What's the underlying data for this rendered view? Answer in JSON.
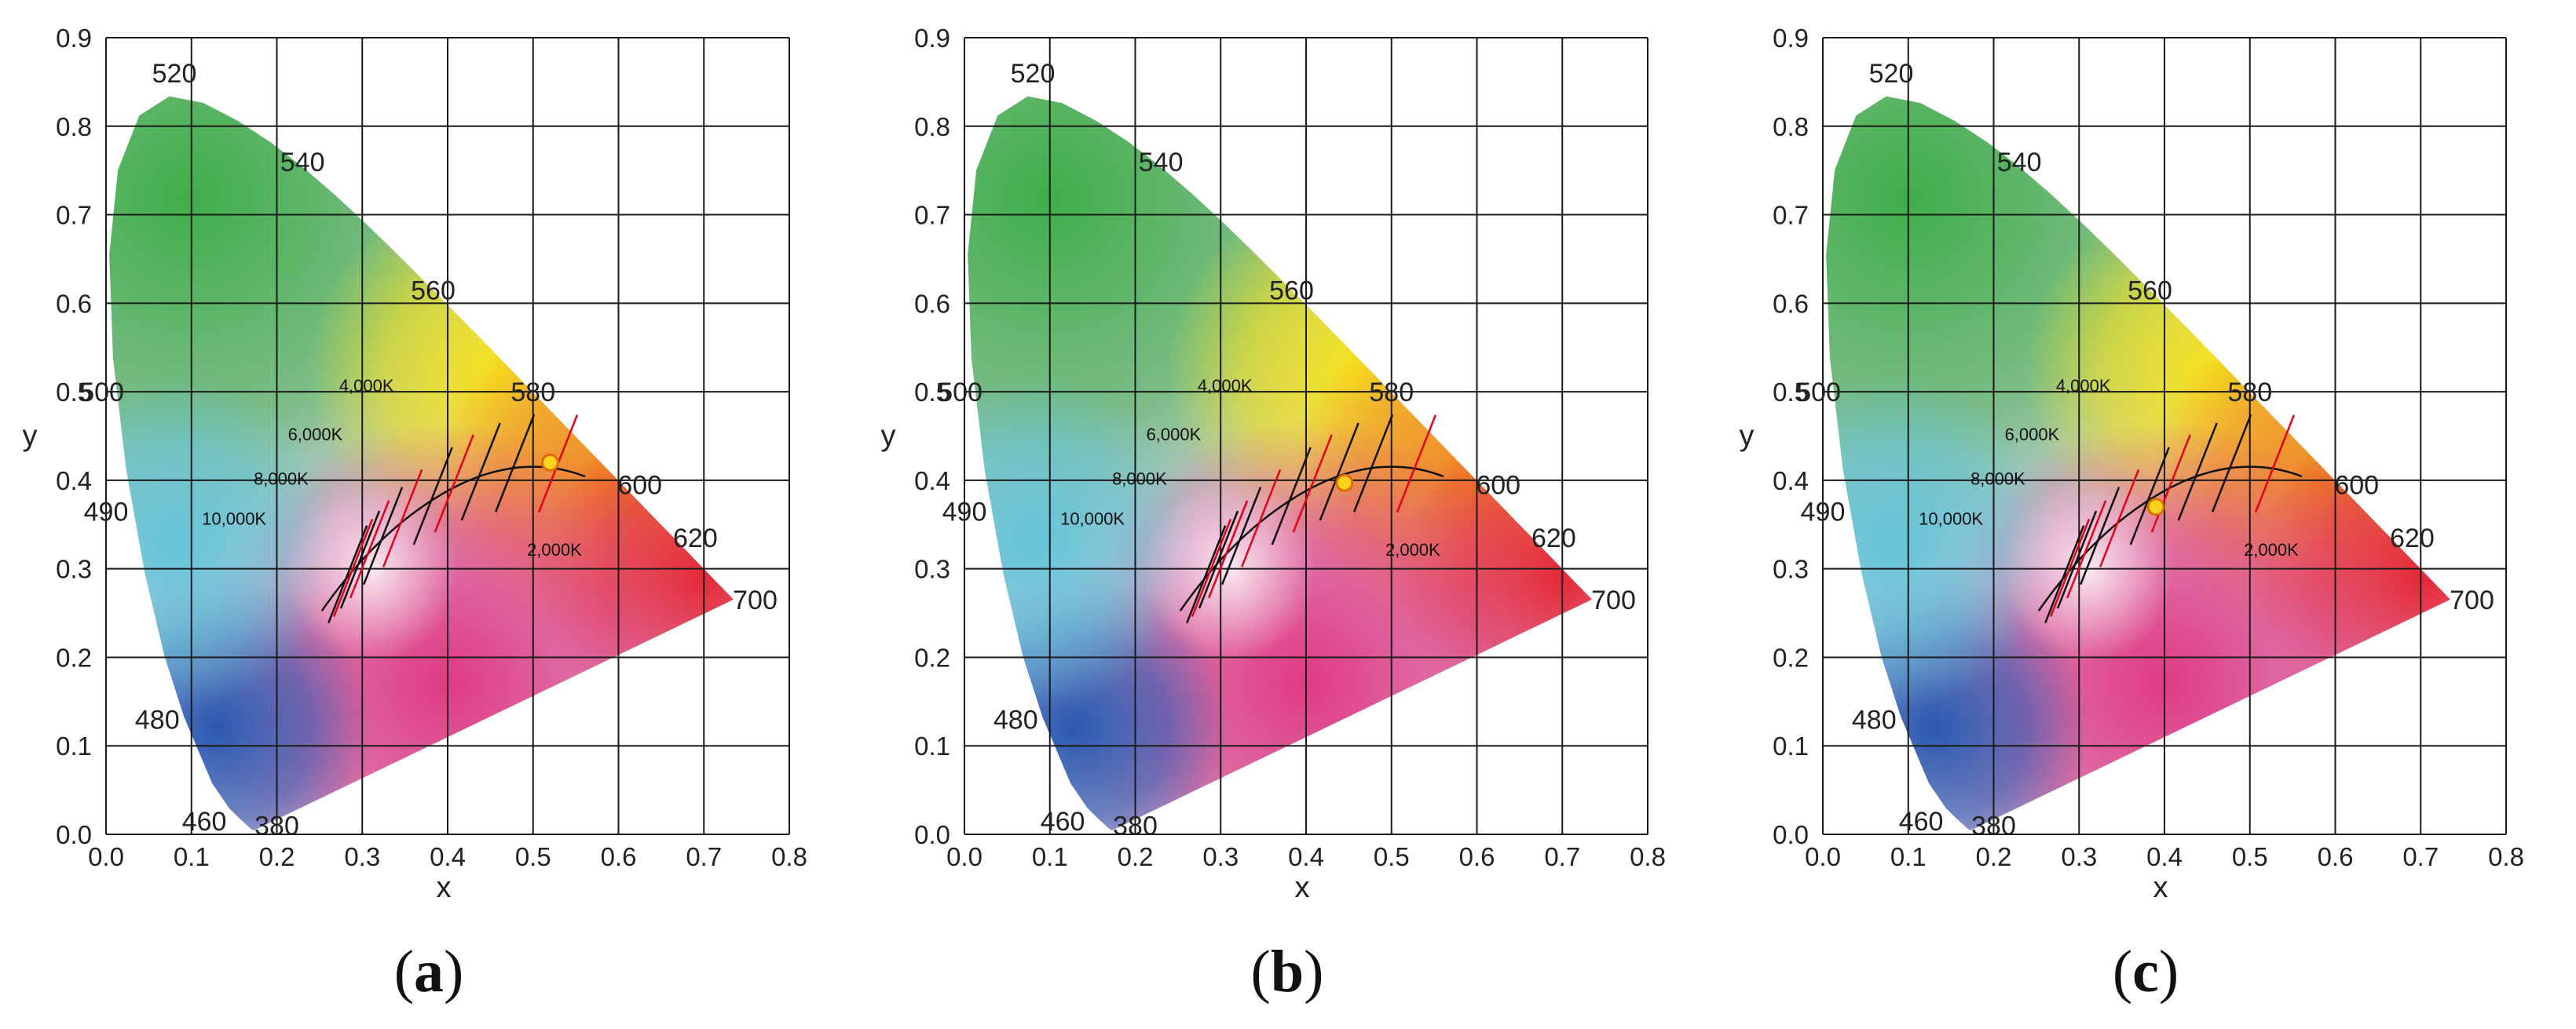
{
  "panels": [
    {
      "caption_open": "(",
      "caption_letter": "a",
      "caption_close": ")"
    },
    {
      "caption_open": "(",
      "caption_letter": "b",
      "caption_close": ")"
    },
    {
      "caption_open": "(",
      "caption_letter": "c",
      "caption_close": ")"
    }
  ],
  "chart_data": [
    {
      "type": "scatter",
      "title": "",
      "xlabel": "x",
      "ylabel": "y",
      "xlim": [
        0.0,
        0.8
      ],
      "ylim": [
        0.0,
        0.9
      ],
      "xticks": [
        "0.0",
        "0.1",
        "0.2",
        "0.3",
        "0.4",
        "0.5",
        "0.6",
        "0.7",
        "0.8"
      ],
      "yticks": [
        "0.0",
        "0.1",
        "0.2",
        "0.3",
        "0.4",
        "0.5",
        "0.6",
        "0.7",
        "0.8",
        "0.9"
      ],
      "grid": true,
      "wavelength_labels": [
        {
          "text": "520",
          "x": 0.08,
          "y": 0.86
        },
        {
          "text": "540",
          "x": 0.23,
          "y": 0.76
        },
        {
          "text": "560",
          "x": 0.383,
          "y": 0.615
        },
        {
          "text": "580",
          "x": 0.5,
          "y": 0.5
        },
        {
          "text": "600",
          "x": 0.625,
          "y": 0.395
        },
        {
          "text": "620",
          "x": 0.69,
          "y": 0.335
        },
        {
          "text": "700",
          "x": 0.76,
          "y": 0.265
        },
        {
          "text": "500",
          "x": -0.005,
          "y": 0.5
        },
        {
          "text": "490",
          "x": 0.0,
          "y": 0.365
        },
        {
          "text": "480",
          "x": 0.06,
          "y": 0.13
        },
        {
          "text": "460",
          "x": 0.115,
          "y": 0.015
        },
        {
          "text": "380",
          "x": 0.2,
          "y": 0.01
        }
      ],
      "cct_labels": [
        {
          "text": "4,000K",
          "x": 0.305,
          "y": 0.5
        },
        {
          "text": "6,000K",
          "x": 0.245,
          "y": 0.445
        },
        {
          "text": "8,000K",
          "x": 0.205,
          "y": 0.395
        },
        {
          "text": "10,000K",
          "x": 0.15,
          "y": 0.35
        },
        {
          "text": "2,000K",
          "x": 0.525,
          "y": 0.315
        }
      ],
      "point": {
        "x": 0.52,
        "y": 0.42
      }
    },
    {
      "type": "scatter",
      "title": "",
      "xlabel": "x",
      "ylabel": "y",
      "xlim": [
        0.0,
        0.8
      ],
      "ylim": [
        0.0,
        0.9
      ],
      "xticks": [
        "0.0",
        "0.1",
        "0.2",
        "0.3",
        "0.4",
        "0.5",
        "0.6",
        "0.7",
        "0.8"
      ],
      "yticks": [
        "0.0",
        "0.1",
        "0.2",
        "0.3",
        "0.4",
        "0.5",
        "0.6",
        "0.7",
        "0.8",
        "0.9"
      ],
      "grid": true,
      "wavelength_labels": [
        {
          "text": "520",
          "x": 0.08,
          "y": 0.86
        },
        {
          "text": "540",
          "x": 0.23,
          "y": 0.76
        },
        {
          "text": "560",
          "x": 0.383,
          "y": 0.615
        },
        {
          "text": "580",
          "x": 0.5,
          "y": 0.5
        },
        {
          "text": "600",
          "x": 0.625,
          "y": 0.395
        },
        {
          "text": "620",
          "x": 0.69,
          "y": 0.335
        },
        {
          "text": "700",
          "x": 0.76,
          "y": 0.265
        },
        {
          "text": "500",
          "x": -0.005,
          "y": 0.5
        },
        {
          "text": "490",
          "x": 0.0,
          "y": 0.365
        },
        {
          "text": "480",
          "x": 0.06,
          "y": 0.13
        },
        {
          "text": "460",
          "x": 0.115,
          "y": 0.015
        },
        {
          "text": "380",
          "x": 0.2,
          "y": 0.01
        }
      ],
      "cct_labels": [
        {
          "text": "4,000K",
          "x": 0.305,
          "y": 0.5
        },
        {
          "text": "6,000K",
          "x": 0.245,
          "y": 0.445
        },
        {
          "text": "8,000K",
          "x": 0.205,
          "y": 0.395
        },
        {
          "text": "10,000K",
          "x": 0.15,
          "y": 0.35
        },
        {
          "text": "2,000K",
          "x": 0.525,
          "y": 0.315
        }
      ],
      "point": {
        "x": 0.445,
        "y": 0.397
      }
    },
    {
      "type": "scatter",
      "title": "",
      "xlabel": "x",
      "ylabel": "y",
      "xlim": [
        0.0,
        0.8
      ],
      "ylim": [
        0.0,
        0.9
      ],
      "xticks": [
        "0.0",
        "0.1",
        "0.2",
        "0.3",
        "0.4",
        "0.5",
        "0.6",
        "0.7",
        "0.8"
      ],
      "yticks": [
        "0.0",
        "0.1",
        "0.2",
        "0.3",
        "0.4",
        "0.5",
        "0.6",
        "0.7",
        "0.8",
        "0.9"
      ],
      "grid": true,
      "wavelength_labels": [
        {
          "text": "520",
          "x": 0.08,
          "y": 0.86
        },
        {
          "text": "540",
          "x": 0.23,
          "y": 0.76
        },
        {
          "text": "560",
          "x": 0.383,
          "y": 0.615
        },
        {
          "text": "580",
          "x": 0.5,
          "y": 0.5
        },
        {
          "text": "600",
          "x": 0.625,
          "y": 0.395
        },
        {
          "text": "620",
          "x": 0.69,
          "y": 0.335
        },
        {
          "text": "700",
          "x": 0.76,
          "y": 0.265
        },
        {
          "text": "500",
          "x": -0.005,
          "y": 0.5
        },
        {
          "text": "490",
          "x": 0.0,
          "y": 0.365
        },
        {
          "text": "480",
          "x": 0.06,
          "y": 0.13
        },
        {
          "text": "460",
          "x": 0.115,
          "y": 0.015
        },
        {
          "text": "380",
          "x": 0.2,
          "y": 0.01
        }
      ],
      "cct_labels": [
        {
          "text": "4,000K",
          "x": 0.305,
          "y": 0.5
        },
        {
          "text": "6,000K",
          "x": 0.245,
          "y": 0.445
        },
        {
          "text": "8,000K",
          "x": 0.205,
          "y": 0.395
        },
        {
          "text": "10,000K",
          "x": 0.15,
          "y": 0.35
        },
        {
          "text": "2,000K",
          "x": 0.525,
          "y": 0.315
        }
      ],
      "point": {
        "x": 0.39,
        "y": 0.37
      }
    }
  ],
  "colors": {
    "point_fill": "#ffd21f",
    "point_stroke": "#e06a00",
    "isotherm_red": "#e3001b",
    "isotherm_black": "#111111",
    "grid": "#1a1a1a"
  }
}
